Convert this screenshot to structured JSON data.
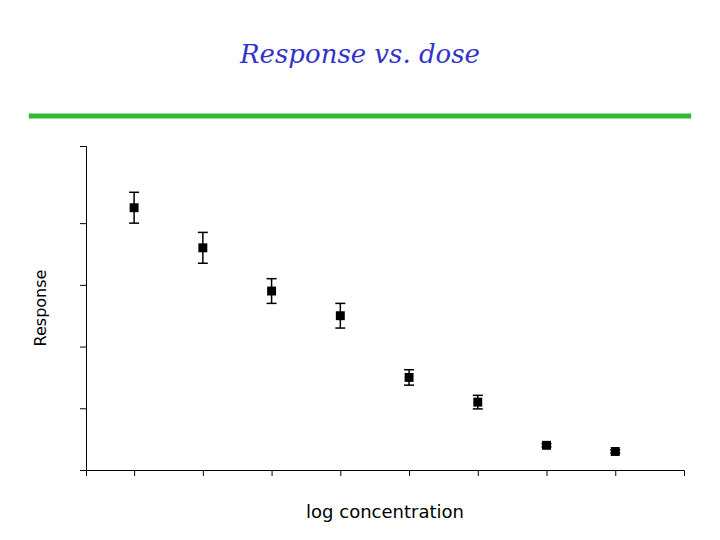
{
  "chart_data": {
    "type": "scatter",
    "title": "Response vs. dose",
    "x_label": "log concentration",
    "y_label": "Response",
    "x": [
      1,
      2,
      3,
      4,
      5,
      6,
      7,
      8
    ],
    "values": [
      8.5,
      7.2,
      5.8,
      5.0,
      3.0,
      2.2,
      0.8,
      0.6
    ],
    "errors": [
      0.5,
      0.5,
      0.4,
      0.4,
      0.25,
      0.22,
      0.05,
      0.05
    ],
    "color": "black",
    "marker": "square",
    "xlim": [
      0.3,
      9.0
    ],
    "ylim": [
      0,
      10.5
    ],
    "xticks": [
      1,
      2,
      3,
      4,
      5,
      6,
      7,
      8
    ],
    "yticks": [
      2,
      4,
      6,
      8
    ],
    "tick_labels": false,
    "grid": false
  }
}
